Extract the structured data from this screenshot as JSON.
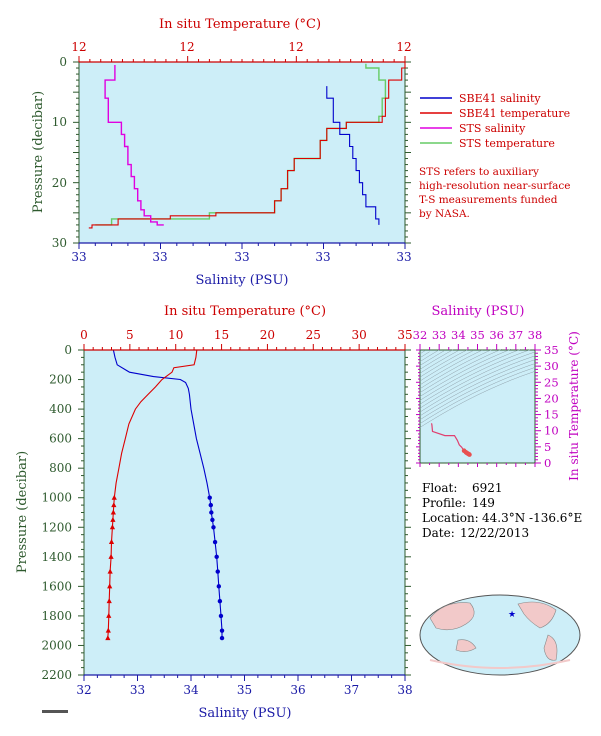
{
  "colors": {
    "plot_bg": "#cdeef8",
    "salinity": "#0000cc",
    "temperature": "#dd0000",
    "sts_salinity": "#e000e0",
    "sts_temperature": "#66cc66",
    "axis_temp": "#cc0000",
    "axis_sal": "#1a1aa6",
    "axis_pressure": "#2e5a2e",
    "axis_ts": "#c000c0"
  },
  "top_panel": {
    "temp_axis_title": "In situ Temperature (°C)",
    "sal_axis_title": "Salinity (PSU)",
    "pressure_axis_title": "Pressure (decibar)",
    "temp_ticks": [
      "12",
      "12",
      "12",
      "12"
    ],
    "sal_ticks": [
      "33",
      "33",
      "33",
      "33",
      "33"
    ],
    "pressure_ticks": [
      "0",
      "10",
      "20",
      "30"
    ],
    "legend": [
      {
        "label": "SBE41 salinity",
        "color": "#0000cc"
      },
      {
        "label": "SBE41 temperature",
        "color": "#dd0000"
      },
      {
        "label": "STS salinity",
        "color": "#e000e0"
      },
      {
        "label": "STS temperature",
        "color": "#66cc66"
      }
    ],
    "note": [
      "STS refers to auxiliary",
      "high-resolution near-surface",
      "T-S measurements funded",
      "by NASA."
    ]
  },
  "bottom_panel": {
    "temp_axis_title": "In situ Temperature (°C)",
    "sal_axis_title": "Salinity (PSU)",
    "pressure_axis_title": "Pressure (decibar)",
    "temp_ticks": [
      "0",
      "5",
      "10",
      "15",
      "20",
      "25",
      "30",
      "35"
    ],
    "sal_ticks": [
      "32",
      "33",
      "34",
      "35",
      "36",
      "37",
      "38"
    ],
    "pressure_ticks": [
      "0",
      "200",
      "400",
      "600",
      "800",
      "1000",
      "1200",
      "1400",
      "1600",
      "1800",
      "2000",
      "2200"
    ]
  },
  "ts_panel": {
    "sal_axis_title": "Salinity (PSU)",
    "temp_axis_title": "In situ Temperature (°C)",
    "sal_ticks": [
      "32",
      "33",
      "34",
      "35",
      "36",
      "37",
      "38"
    ],
    "temp_ticks": [
      "0",
      "5",
      "10",
      "15",
      "20",
      "25",
      "30",
      "35"
    ]
  },
  "info": {
    "float_label": "Float:",
    "float_value": "6921",
    "profile_label": "Profile:",
    "profile_value": "149",
    "location_label": "Location:",
    "location_value": "44.3°N  -136.6°E",
    "date_label": "Date:",
    "date_value": "12/22/2013"
  },
  "chart_data": [
    {
      "type": "line",
      "title": "",
      "xlabel": "Salinity (PSU) / In situ Temperature (°C)",
      "ylabel": "Pressure (decibar)",
      "ylim": [
        30,
        0
      ],
      "series": [
        {
          "name": "SBE41 salinity",
          "pressure": [
            4,
            6,
            8,
            10,
            12,
            14,
            16,
            18,
            20,
            22,
            24,
            26,
            27
          ],
          "x_frac": [
            0.76,
            0.78,
            0.78,
            0.8,
            0.83,
            0.84,
            0.85,
            0.86,
            0.87,
            0.88,
            0.91,
            0.92,
            0.92
          ]
        },
        {
          "name": "SBE41 temperature",
          "pressure": [
            0,
            1,
            3,
            6,
            9,
            10,
            11,
            13,
            16,
            18,
            21,
            23,
            25,
            25.5,
            26,
            27,
            27.5
          ],
          "x_frac": [
            1.0,
            0.99,
            0.95,
            0.94,
            0.93,
            0.82,
            0.76,
            0.74,
            0.66,
            0.64,
            0.62,
            0.6,
            0.42,
            0.28,
            0.12,
            0.04,
            0.03
          ]
        },
        {
          "name": "STS salinity",
          "pressure": [
            0.5,
            3,
            6,
            9,
            10,
            12,
            14,
            17,
            19,
            21,
            23,
            24.5,
            25.5,
            26.5,
            27
          ],
          "x_frac": [
            0.11,
            0.08,
            0.09,
            0.09,
            0.13,
            0.14,
            0.15,
            0.16,
            0.17,
            0.18,
            0.19,
            0.2,
            0.22,
            0.24,
            0.26
          ]
        },
        {
          "name": "STS temperature",
          "pressure": [
            0.3,
            1,
            3,
            6,
            9,
            10,
            11,
            13,
            16,
            18,
            21,
            23,
            25,
            26,
            27
          ],
          "x_frac": [
            0.88,
            0.92,
            0.94,
            0.93,
            0.92,
            0.82,
            0.76,
            0.74,
            0.66,
            0.64,
            0.62,
            0.6,
            0.4,
            0.1,
            0.05
          ]
        }
      ]
    },
    {
      "type": "line",
      "title": "",
      "xlabel": "Salinity (PSU)",
      "x2label": "In situ Temperature (°C)",
      "ylabel": "Pressure (decibar)",
      "xlim": [
        32,
        38
      ],
      "x2lim": [
        0,
        35
      ],
      "ylim": [
        2200,
        0
      ],
      "series": [
        {
          "name": "salinity",
          "pressure": [
            0,
            50,
            100,
            150,
            180,
            200,
            220,
            260,
            300,
            400,
            500,
            600,
            700,
            800,
            900,
            1000,
            1050,
            1100,
            1150,
            1200,
            1300,
            1400,
            1500,
            1600,
            1700,
            1800,
            1900,
            1950
          ],
          "salinity": [
            32.55,
            32.58,
            32.62,
            32.85,
            33.3,
            33.8,
            33.9,
            33.95,
            33.97,
            34.0,
            34.05,
            34.1,
            34.17,
            34.24,
            34.3,
            34.35,
            34.37,
            34.38,
            34.4,
            34.42,
            34.45,
            34.48,
            34.5,
            34.52,
            34.54,
            34.56,
            34.58,
            34.58
          ]
        },
        {
          "name": "temperature",
          "pressure": [
            0,
            50,
            100,
            120,
            150,
            200,
            250,
            300,
            350,
            400,
            500,
            600,
            700,
            800,
            900,
            1000,
            1050,
            1100,
            1150,
            1200,
            1300,
            1400,
            1500,
            1600,
            1700,
            1800,
            1900,
            1950
          ],
          "temperature": [
            12.3,
            12.2,
            12.0,
            9.8,
            9.6,
            8.5,
            7.8,
            7.0,
            6.2,
            5.6,
            4.9,
            4.5,
            4.1,
            3.8,
            3.5,
            3.3,
            3.25,
            3.2,
            3.15,
            3.1,
            3.0,
            2.95,
            2.85,
            2.8,
            2.75,
            2.7,
            2.65,
            2.6
          ]
        }
      ]
    },
    {
      "type": "scatter",
      "title": "",
      "xlabel": "Salinity (PSU)",
      "ylabel": "In situ Temperature (°C)",
      "xlim": [
        32,
        38
      ],
      "ylim": [
        0,
        35
      ],
      "series": [
        {
          "name": "T-S",
          "salinity": [
            32.6,
            32.62,
            32.65,
            33.3,
            33.8,
            33.95,
            34.05,
            34.17,
            34.3,
            34.4,
            34.45,
            34.5,
            34.55,
            34.58
          ],
          "temperature": [
            12.3,
            11.8,
            9.8,
            8.5,
            8.5,
            7.0,
            5.6,
            4.9,
            3.8,
            3.3,
            3.1,
            2.9,
            2.75,
            2.6
          ]
        }
      ]
    }
  ]
}
